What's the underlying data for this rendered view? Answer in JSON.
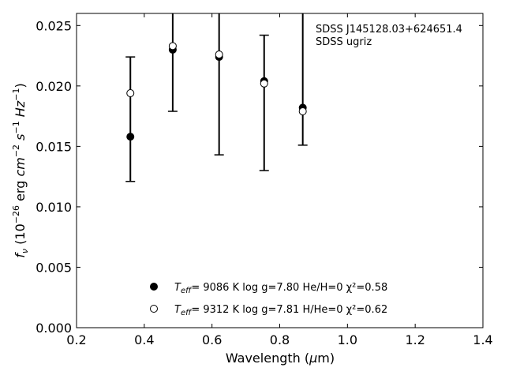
{
  "chart_data": {
    "type": "scatter",
    "xlabel": "Wavelength (μm)",
    "ylabel": "f_ν (10^-26 erg cm^-2 s^-1 Hz^-1)",
    "xlim": [
      0.2,
      1.4
    ],
    "ylim": [
      0.0,
      0.026
    ],
    "x_ticks": [
      "0.2",
      "0.4",
      "0.6",
      "0.8",
      "1.0",
      "1.2",
      "1.4"
    ],
    "y_ticks": [
      "0.000",
      "0.005",
      "0.010",
      "0.015",
      "0.020",
      "0.025"
    ],
    "annotation_lines": [
      "SDSS J145128.03+624651.4",
      "SDSS ugriz"
    ],
    "observed": {
      "x": [
        0.359,
        0.484,
        0.621,
        0.754,
        0.868
      ],
      "lower": [
        0.0121,
        0.0179,
        0.0143,
        0.013,
        0.0151
      ],
      "upper": [
        0.0224,
        0.026,
        0.026,
        0.0242,
        0.026
      ],
      "upper_cap": [
        true,
        false,
        false,
        true,
        false
      ],
      "lower_cap": [
        true,
        true,
        true,
        true,
        true
      ]
    },
    "series": [
      {
        "name": "T_eff= 9086 K log g=7.80 He/H=0 χ²=0.58",
        "marker": "filled",
        "x": [
          0.359,
          0.484,
          0.621,
          0.754,
          0.868
        ],
        "y": [
          0.0158,
          0.023,
          0.0224,
          0.0204,
          0.0182
        ]
      },
      {
        "name": "T_eff= 9312 K log g=7.81 H/He=0 χ²=0.62",
        "marker": "open",
        "x": [
          0.359,
          0.484,
          0.621,
          0.754,
          0.868
        ],
        "y": [
          0.0194,
          0.0233,
          0.0226,
          0.0202,
          0.0179
        ]
      }
    ],
    "legend": [
      {
        "teff": "9086 K",
        "logg": "log g=7.80",
        "comp": "He/H=0",
        "chi2": "χ²=0.58"
      },
      {
        "teff": "9312 K",
        "logg": "log g=7.81",
        "comp": "H/He=0",
        "chi2": "χ²=0.62"
      }
    ],
    "grid": false,
    "legend_position": "bottom-center"
  }
}
